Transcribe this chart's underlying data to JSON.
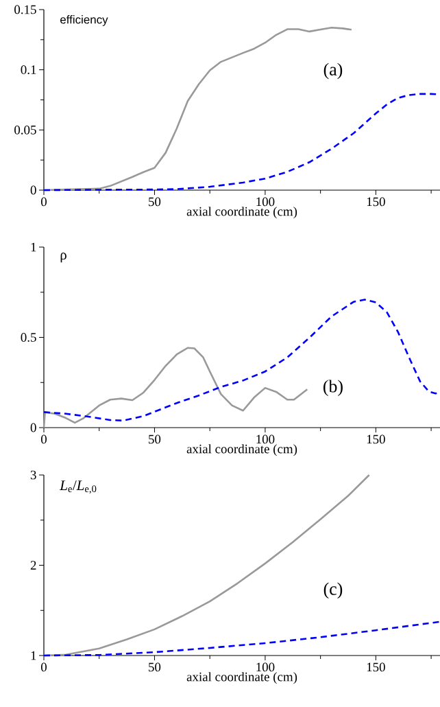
{
  "chart_data": [
    {
      "type": "line",
      "ylabel": "efficiency",
      "xlabel": "axial coordinate (cm)",
      "annotations": [
        "(a)"
      ],
      "xlim": [
        0,
        179
      ],
      "ylim": [
        0,
        0.15
      ],
      "xticks": [
        0,
        {
          "value": 25,
          "label": null
        },
        50,
        {
          "value": 75,
          "label": null
        },
        100,
        {
          "value": 125,
          "label": null
        },
        150,
        {
          "value": 175,
          "label": null
        }
      ],
      "yticks": [
        0,
        {
          "value": 0.025,
          "label": null
        },
        0.05,
        {
          "value": 0.075,
          "label": null
        },
        0.1,
        {
          "value": 0.125,
          "label": null
        },
        0.15
      ],
      "series": [
        {
          "color": "#999999",
          "line_style": "solid",
          "x": [
            0,
            10,
            20,
            25,
            30,
            40,
            45,
            50,
            55,
            60,
            65,
            70,
            75,
            80,
            90,
            95,
            100,
            105,
            110,
            115,
            120,
            125,
            130,
            135,
            139
          ],
          "values": [
            0,
            0.0005,
            0.001,
            0.0012,
            0.0035,
            0.011,
            0.015,
            0.0185,
            0.031,
            0.051,
            0.074,
            0.088,
            0.0995,
            0.1066,
            0.114,
            0.1175,
            0.1225,
            0.129,
            0.1337,
            0.1337,
            0.1318,
            0.1335,
            0.135,
            0.1344,
            0.1333
          ]
        },
        {
          "color": "#0000ff",
          "line_style": "dashed",
          "x": [
            0,
            25,
            50,
            60,
            75,
            90,
            100,
            110,
            120,
            130,
            140,
            145,
            150,
            155,
            160,
            165,
            170,
            175,
            179
          ],
          "values": [
            0,
            0.0003,
            0.0005,
            0.0008,
            0.0028,
            0.0063,
            0.0096,
            0.0152,
            0.0232,
            0.0344,
            0.0473,
            0.0555,
            0.0637,
            0.0712,
            0.0766,
            0.079,
            0.0799,
            0.0799,
            0.0795
          ]
        }
      ]
    },
    {
      "type": "line",
      "ylabel": "ρ",
      "xlabel": "axial coordinate (cm)",
      "annotations": [
        "(b)"
      ],
      "xlim": [
        0,
        179
      ],
      "ylim": [
        0,
        1
      ],
      "xticks": [
        0,
        {
          "value": 25,
          "label": null
        },
        50,
        {
          "value": 75,
          "label": null
        },
        100,
        {
          "value": 125,
          "label": null
        },
        150,
        {
          "value": 175,
          "label": null
        }
      ],
      "yticks": [
        0,
        {
          "value": 0.25,
          "label": null
        },
        0.5,
        {
          "value": 0.75,
          "label": null
        },
        1
      ],
      "series": [
        {
          "color": "#999999",
          "line_style": "solid",
          "x": [
            0,
            0.5,
            5,
            10,
            14,
            18,
            25,
            30,
            35,
            40,
            45,
            50,
            55,
            60,
            65,
            68,
            72,
            75,
            80,
            85,
            90,
            95,
            100,
            105,
            110,
            113,
            119
          ],
          "values": [
            0,
            0.085,
            0.077,
            0.053,
            0.027,
            0.053,
            0.123,
            0.155,
            0.161,
            0.152,
            0.194,
            0.264,
            0.342,
            0.405,
            0.442,
            0.439,
            0.389,
            0.311,
            0.186,
            0.123,
            0.094,
            0.167,
            0.22,
            0.198,
            0.155,
            0.155,
            0.212
          ]
        },
        {
          "color": "#0000ff",
          "line_style": "dashed",
          "x": [
            0,
            10,
            20,
            30,
            36,
            45,
            50,
            60,
            70,
            80,
            90,
            100,
            110,
            120,
            130,
            140,
            145,
            150,
            155,
            160,
            165,
            170,
            174,
            177,
            179
          ],
          "values": [
            0.086,
            0.077,
            0.061,
            0.042,
            0.039,
            0.064,
            0.088,
            0.136,
            0.178,
            0.225,
            0.261,
            0.311,
            0.389,
            0.498,
            0.616,
            0.697,
            0.709,
            0.694,
            0.639,
            0.53,
            0.389,
            0.256,
            0.2,
            0.189,
            0.198
          ]
        }
      ]
    },
    {
      "type": "line",
      "ylabel": "*L*$_{e}$/*L*$_{e,0}$",
      "xlabel": "axial coordinate (cm)",
      "annotations": [
        "(c)"
      ],
      "xlim": [
        0,
        179
      ],
      "ylim": [
        1,
        3
      ],
      "xticks": [
        0,
        {
          "value": 25,
          "label": null
        },
        50,
        {
          "value": 75,
          "label": null
        },
        100,
        {
          "value": 125,
          "label": null
        },
        150,
        {
          "value": 175,
          "label": null
        }
      ],
      "yticks": [
        1,
        {
          "value": 1.5,
          "label": null
        },
        2,
        {
          "value": 2.5,
          "label": null
        },
        3
      ],
      "series": [
        {
          "color": "#999999",
          "line_style": "solid",
          "x": [
            0,
            10,
            25,
            37.5,
            50,
            62.5,
            75,
            87.5,
            100,
            112.5,
            125,
            137.5,
            147
          ],
          "values": [
            1,
            1.01,
            1.078,
            1.178,
            1.29,
            1.437,
            1.6,
            1.8,
            2.02,
            2.256,
            2.51,
            2.77,
            3.0
          ]
        },
        {
          "color": "#0000ff",
          "line_style": "dashed",
          "x": [
            0,
            25,
            50,
            75,
            100,
            125,
            150,
            179
          ],
          "values": [
            1,
            1.006,
            1.037,
            1.084,
            1.137,
            1.203,
            1.28,
            1.374
          ]
        }
      ]
    }
  ]
}
